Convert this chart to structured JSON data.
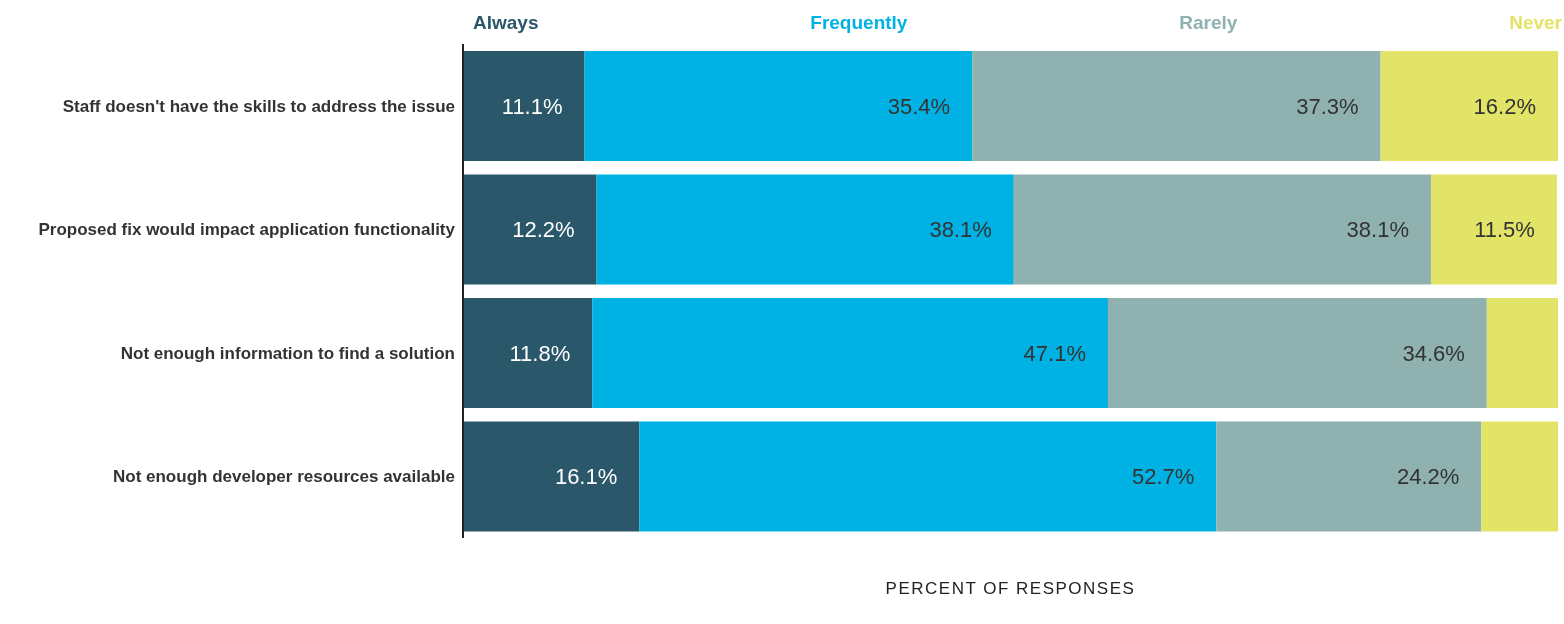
{
  "chart_data": {
    "type": "bar",
    "orientation": "horizontal",
    "stacked": true,
    "xlabel": "PERCENT OF RESPONSES",
    "categories": [
      "Staff doesn't have the skills to address the issue",
      "Proposed fix would impact application functionality",
      "Not enough information to find a solution",
      "Not enough developer resources available"
    ],
    "series": [
      {
        "name": "Always",
        "color": "#2a5769",
        "values": [
          11.1,
          12.2,
          11.8,
          16.1
        ],
        "value_labels": [
          "11.1%",
          "12.2%",
          "11.8%",
          "16.1%"
        ]
      },
      {
        "name": "Frequently",
        "color": "#00b2e3",
        "values": [
          35.4,
          38.1,
          47.1,
          52.7
        ],
        "value_labels": [
          "35.4%",
          "38.1%",
          "47.1%",
          "52.7%"
        ]
      },
      {
        "name": "Rarely",
        "color": "#8fb1b0",
        "values": [
          37.3,
          38.1,
          34.6,
          24.2
        ],
        "value_labels": [
          "37.3%",
          "38.1%",
          "34.6%",
          "24.2%"
        ]
      },
      {
        "name": "Never",
        "color": "#e2e467",
        "values": [
          16.2,
          11.5,
          6.5,
          7.0
        ],
        "value_labels": [
          "16.2%",
          "11.5%",
          null,
          null
        ]
      }
    ],
    "xlim": [
      0,
      100
    ],
    "tick_labels": "y",
    "legend": "top",
    "grid": false
  }
}
